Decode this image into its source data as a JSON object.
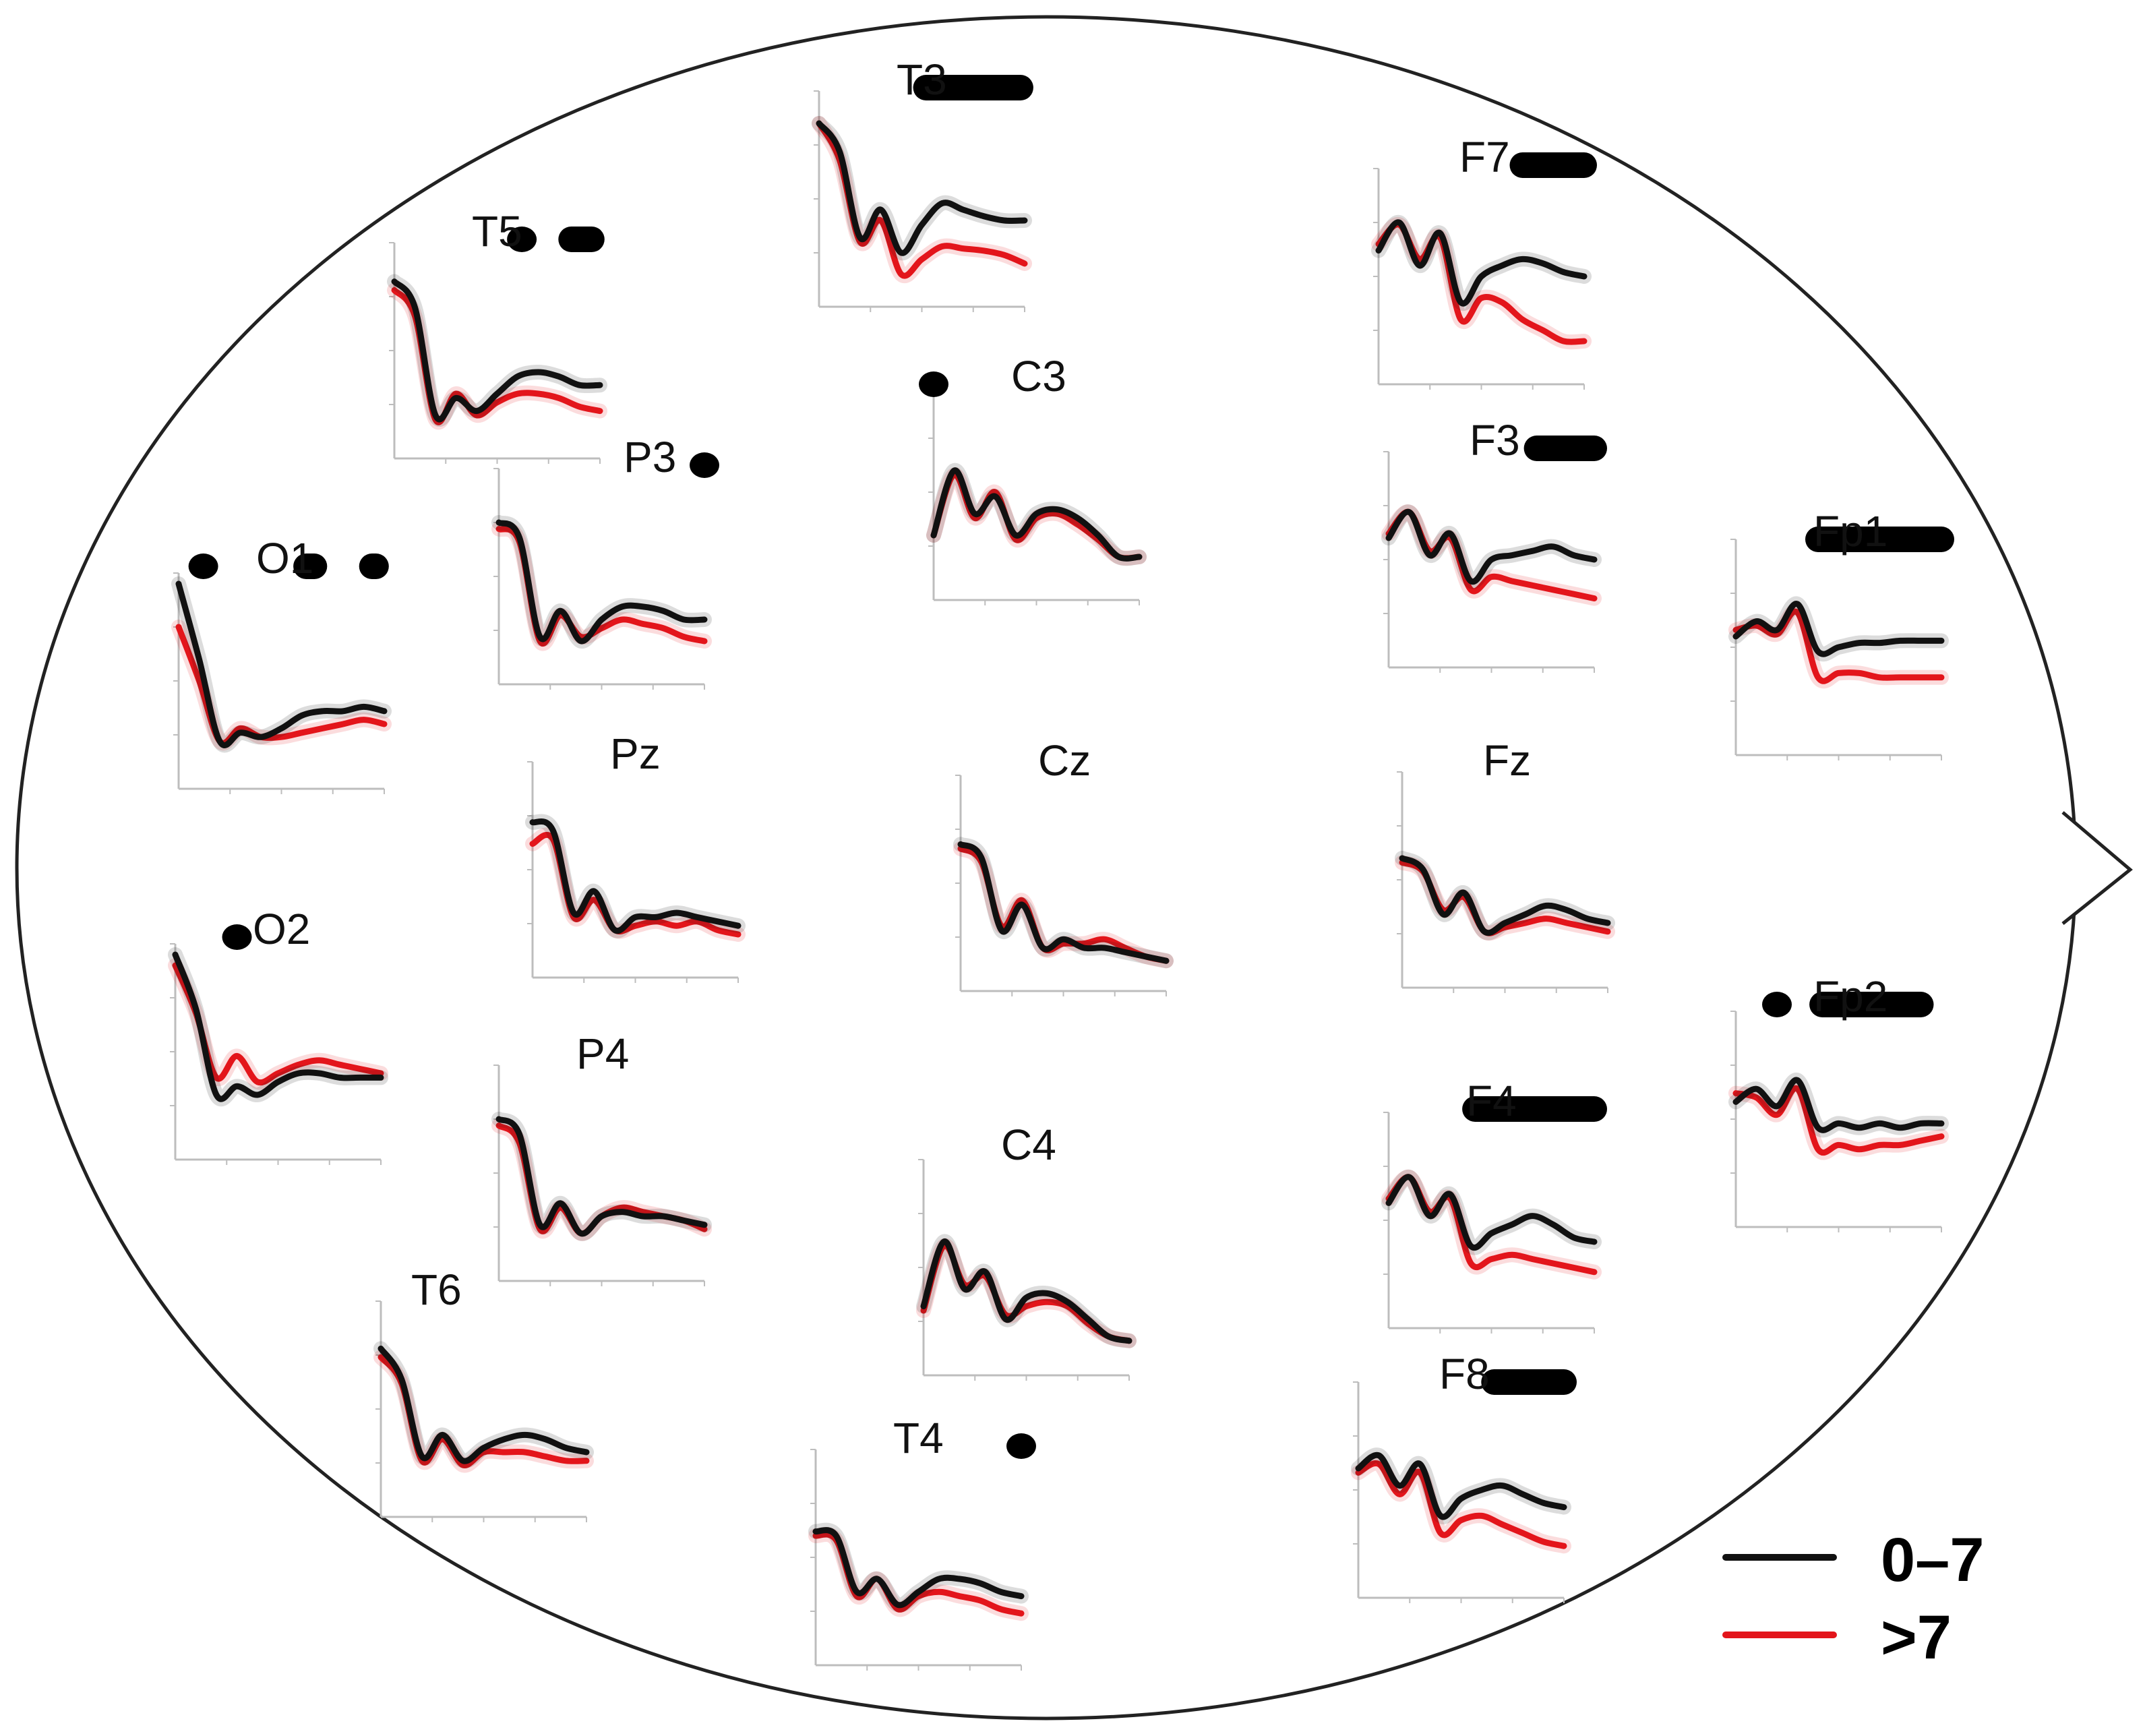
{
  "colors": {
    "group_0_7": "#111111",
    "group_gt7": "#e3151b",
    "significance": "#000000",
    "head_outline": "#222222",
    "axes": "#bdbdbd"
  },
  "legend": [
    {
      "label": "0–7",
      "color": "#111111"
    },
    {
      "label": ">7",
      "color": "#e3151b"
    }
  ],
  "chart_data": {
    "type": "line",
    "title": "",
    "layout": "scalp topographic map (nose pointing right)",
    "series_names": [
      "0–7",
      ">7"
    ],
    "x_normalized_samples": [
      0,
      0.1,
      0.2,
      0.3,
      0.4,
      0.5,
      0.6,
      0.7,
      0.8,
      0.9,
      1.0
    ],
    "channels": [
      {
        "name": "T3",
        "y_0_7": [
          0.85,
          0.72,
          0.32,
          0.45,
          0.25,
          0.38,
          0.48,
          0.45,
          0.42,
          0.4,
          0.4
        ],
        "y_gt7": [
          0.85,
          0.68,
          0.3,
          0.4,
          0.15,
          0.22,
          0.28,
          0.27,
          0.26,
          0.24,
          0.2
        ],
        "sig": [
          [
            0.52,
            0.98
          ]
        ]
      },
      {
        "name": "T5",
        "y_0_7": [
          0.82,
          0.7,
          0.2,
          0.28,
          0.22,
          0.3,
          0.38,
          0.4,
          0.38,
          0.34,
          0.34
        ],
        "y_gt7": [
          0.78,
          0.66,
          0.18,
          0.3,
          0.2,
          0.26,
          0.3,
          0.3,
          0.28,
          0.24,
          0.22
        ],
        "sig": [
          [
            0.62,
            0.62
          ],
          [
            0.86,
            0.96
          ]
        ]
      },
      {
        "name": "F7",
        "y_0_7": [
          0.62,
          0.75,
          0.55,
          0.7,
          0.38,
          0.5,
          0.55,
          0.58,
          0.56,
          0.52,
          0.5
        ],
        "y_gt7": [
          0.65,
          0.74,
          0.58,
          0.68,
          0.3,
          0.4,
          0.38,
          0.3,
          0.25,
          0.2,
          0.2
        ],
        "sig": [
          [
            0.7,
            1.0
          ]
        ]
      },
      {
        "name": "C3",
        "y_0_7": [
          0.3,
          0.6,
          0.4,
          0.48,
          0.3,
          0.4,
          0.42,
          0.38,
          0.3,
          0.2,
          0.2
        ],
        "y_gt7": [
          0.3,
          0.58,
          0.38,
          0.5,
          0.28,
          0.38,
          0.4,
          0.35,
          0.28,
          0.2,
          0.2
        ],
        "sig": [
          [
            0.0,
            0.0
          ]
        ]
      },
      {
        "name": "P3",
        "y_0_7": [
          0.75,
          0.68,
          0.22,
          0.34,
          0.2,
          0.3,
          0.36,
          0.36,
          0.34,
          0.3,
          0.3
        ],
        "y_gt7": [
          0.72,
          0.66,
          0.2,
          0.32,
          0.22,
          0.26,
          0.3,
          0.28,
          0.26,
          0.22,
          0.2
        ],
        "sig": [
          [
            1.0,
            1.0
          ]
        ]
      },
      {
        "name": "O1",
        "y_0_7": [
          0.95,
          0.6,
          0.22,
          0.26,
          0.24,
          0.28,
          0.34,
          0.36,
          0.36,
          0.38,
          0.36
        ],
        "y_gt7": [
          0.75,
          0.5,
          0.22,
          0.28,
          0.24,
          0.24,
          0.26,
          0.28,
          0.3,
          0.32,
          0.3
        ],
        "sig": [
          [
            0.12,
            0.12
          ],
          [
            0.62,
            0.66
          ],
          [
            0.94,
            0.96
          ]
        ]
      },
      {
        "name": "F3",
        "y_0_7": [
          0.6,
          0.72,
          0.52,
          0.62,
          0.4,
          0.5,
          0.52,
          0.54,
          0.56,
          0.52,
          0.5
        ],
        "y_gt7": [
          0.62,
          0.72,
          0.54,
          0.6,
          0.36,
          0.42,
          0.4,
          0.38,
          0.36,
          0.34,
          0.32
        ],
        "sig": [
          [
            0.72,
            1.0
          ]
        ]
      },
      {
        "name": "Fp1",
        "y_0_7": [
          0.55,
          0.62,
          0.58,
          0.7,
          0.48,
          0.5,
          0.52,
          0.52,
          0.53,
          0.53,
          0.53
        ],
        "y_gt7": [
          0.58,
          0.6,
          0.56,
          0.66,
          0.36,
          0.38,
          0.38,
          0.36,
          0.36,
          0.36,
          0.36
        ],
        "sig": [
          [
            0.4,
            1.0
          ]
        ]
      },
      {
        "name": "Pz",
        "y_0_7": [
          0.72,
          0.68,
          0.3,
          0.4,
          0.22,
          0.28,
          0.28,
          0.3,
          0.28,
          0.26,
          0.24
        ],
        "y_gt7": [
          0.62,
          0.64,
          0.28,
          0.36,
          0.22,
          0.24,
          0.26,
          0.24,
          0.26,
          0.22,
          0.2
        ],
        "sig": []
      },
      {
        "name": "Cz",
        "y_0_7": [
          0.68,
          0.62,
          0.28,
          0.4,
          0.2,
          0.24,
          0.2,
          0.2,
          0.18,
          0.16,
          0.14
        ],
        "y_gt7": [
          0.66,
          0.6,
          0.3,
          0.42,
          0.2,
          0.22,
          0.22,
          0.24,
          0.2,
          0.16,
          0.14
        ],
        "sig": []
      },
      {
        "name": "Fz",
        "y_0_7": [
          0.6,
          0.55,
          0.34,
          0.44,
          0.26,
          0.3,
          0.34,
          0.38,
          0.36,
          0.32,
          0.3
        ],
        "y_gt7": [
          0.58,
          0.54,
          0.36,
          0.42,
          0.26,
          0.28,
          0.3,
          0.32,
          0.3,
          0.28,
          0.26
        ],
        "sig": []
      },
      {
        "name": "O2",
        "y_0_7": [
          0.95,
          0.7,
          0.3,
          0.34,
          0.3,
          0.36,
          0.4,
          0.4,
          0.38,
          0.38,
          0.38
        ],
        "y_gt7": [
          0.9,
          0.68,
          0.38,
          0.48,
          0.36,
          0.4,
          0.44,
          0.46,
          0.44,
          0.42,
          0.4
        ],
        "sig": [
          [
            0.3,
            0.3
          ]
        ]
      },
      {
        "name": "P4",
        "y_0_7": [
          0.75,
          0.68,
          0.26,
          0.36,
          0.22,
          0.3,
          0.32,
          0.3,
          0.3,
          0.28,
          0.26
        ],
        "y_gt7": [
          0.72,
          0.64,
          0.24,
          0.34,
          0.22,
          0.3,
          0.34,
          0.32,
          0.3,
          0.28,
          0.24
        ],
        "sig": []
      },
      {
        "name": "C4",
        "y_0_7": [
          0.32,
          0.62,
          0.4,
          0.48,
          0.26,
          0.36,
          0.38,
          0.34,
          0.26,
          0.18,
          0.16
        ],
        "y_gt7": [
          0.3,
          0.6,
          0.42,
          0.46,
          0.28,
          0.32,
          0.34,
          0.32,
          0.24,
          0.18,
          0.16
        ],
        "sig": []
      },
      {
        "name": "F4",
        "y_0_7": [
          0.58,
          0.7,
          0.52,
          0.62,
          0.38,
          0.44,
          0.48,
          0.52,
          0.48,
          0.42,
          0.4
        ],
        "y_gt7": [
          0.6,
          0.7,
          0.54,
          0.6,
          0.3,
          0.32,
          0.34,
          0.32,
          0.3,
          0.28,
          0.26
        ],
        "sig": [
          [
            0.42,
            1.0
          ]
        ]
      },
      {
        "name": "Fp2",
        "y_0_7": [
          0.58,
          0.64,
          0.56,
          0.68,
          0.46,
          0.48,
          0.46,
          0.48,
          0.46,
          0.48,
          0.48
        ],
        "y_gt7": [
          0.62,
          0.6,
          0.52,
          0.64,
          0.36,
          0.38,
          0.36,
          0.38,
          0.38,
          0.4,
          0.42
        ],
        "sig": [
          [
            0.2,
            0.2
          ],
          [
            0.42,
            0.9
          ]
        ]
      },
      {
        "name": "T6",
        "y_0_7": [
          0.78,
          0.64,
          0.28,
          0.38,
          0.26,
          0.32,
          0.36,
          0.38,
          0.36,
          0.32,
          0.3
        ],
        "y_gt7": [
          0.74,
          0.62,
          0.26,
          0.36,
          0.24,
          0.3,
          0.3,
          0.3,
          0.28,
          0.26,
          0.26
        ],
        "sig": []
      },
      {
        "name": "T4",
        "y_0_7": [
          0.62,
          0.6,
          0.34,
          0.4,
          0.28,
          0.34,
          0.4,
          0.4,
          0.38,
          0.34,
          0.32
        ],
        "y_gt7": [
          0.6,
          0.58,
          0.32,
          0.4,
          0.26,
          0.32,
          0.34,
          0.32,
          0.3,
          0.26,
          0.24
        ],
        "sig": [
          [
            1.0,
            1.0
          ]
        ]
      },
      {
        "name": "F8",
        "y_0_7": [
          0.6,
          0.66,
          0.52,
          0.62,
          0.38,
          0.46,
          0.5,
          0.52,
          0.48,
          0.44,
          0.42
        ],
        "y_gt7": [
          0.58,
          0.62,
          0.48,
          0.58,
          0.3,
          0.36,
          0.38,
          0.34,
          0.3,
          0.26,
          0.24
        ],
        "sig": [
          [
            0.66,
            1.0
          ]
        ]
      }
    ]
  }
}
